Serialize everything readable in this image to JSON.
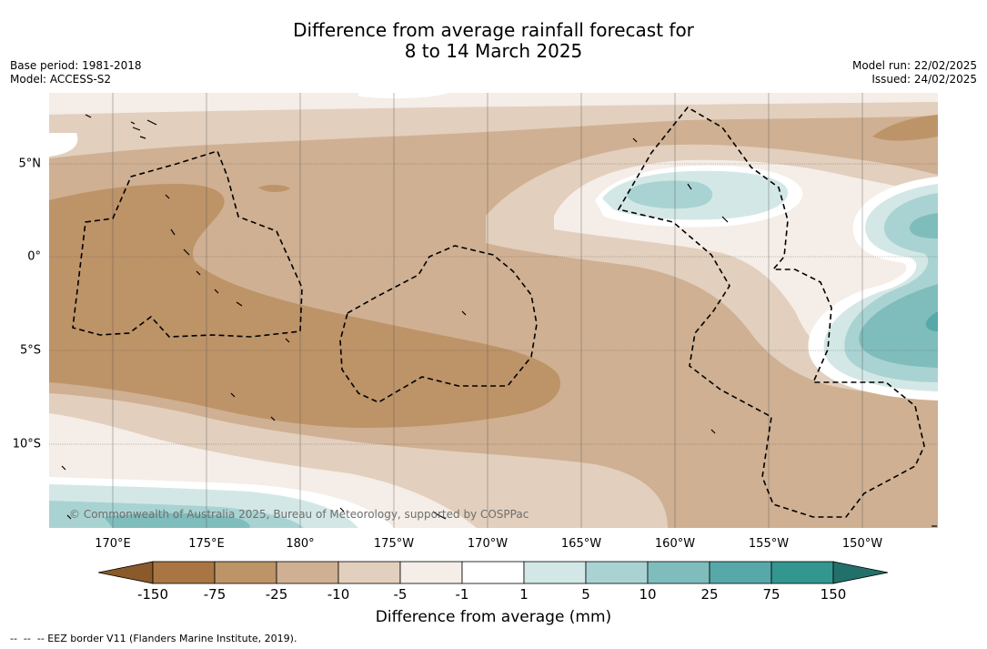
{
  "title_line1": "Difference from average rainfall forecast for",
  "title_line2": "8 to 14 March 2025",
  "base_period": "Base period: 1981-2018",
  "model": "Model: ACCESS-S2",
  "model_run": "Model run: 22/02/2025",
  "issued": "Issued: 24/02/2025",
  "credit": "© Commonwealth of Australia 2025, Bureau of Meteorology, supported by COSPPac",
  "footnote": "--  --  -- EEZ border V11 (Flanders Marine Institute, 2019).",
  "lon_labels": [
    "170°E",
    "175°E",
    "180°",
    "175°W",
    "170°W",
    "165°W",
    "160°W",
    "155°W",
    "150°W"
  ],
  "lat_labels": [
    "5°N",
    "0°",
    "5°S",
    "10°S"
  ],
  "colorbar": {
    "title": "Difference from average (mm)",
    "ticks": [
      "-150",
      "-75",
      "-25",
      "-10",
      "-5",
      "-1",
      "1",
      "5",
      "10",
      "25",
      "75",
      "150"
    ],
    "colors": [
      "#8a5a2b",
      "#a87543",
      "#bd9368",
      "#cfb092",
      "#e2cfbd",
      "#f5ede7",
      "#ffffff",
      "#d3e8e6",
      "#a9d3d2",
      "#7fbdbc",
      "#56a9a8",
      "#33968f",
      "#23706b"
    ]
  }
}
